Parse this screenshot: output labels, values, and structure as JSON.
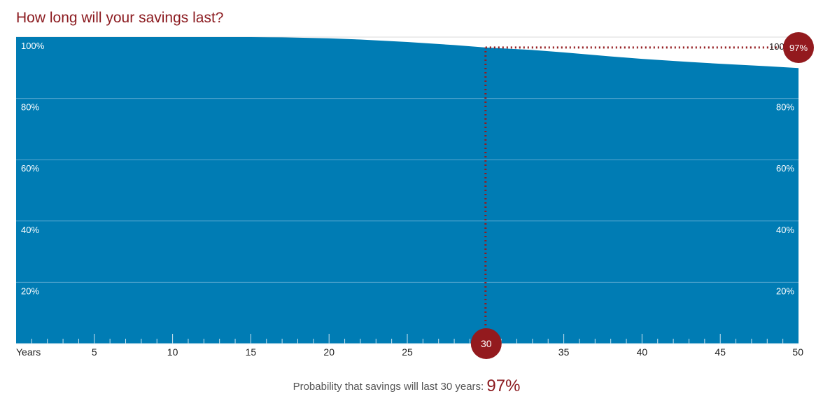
{
  "title": "How long will your savings last?",
  "footer": {
    "text": "Probability that savings will last 30 years:",
    "value": "97%"
  },
  "colors": {
    "area": "#007cb4",
    "accent": "#931a1e",
    "title": "#8b1a1f"
  },
  "chart_data": {
    "type": "area",
    "title": "How long will your savings last?",
    "xlabel": "Years",
    "ylabel": "",
    "x_ticks": [
      5,
      10,
      15,
      20,
      25,
      30,
      35,
      40,
      45,
      50
    ],
    "y_ticks": [
      "20%",
      "40%",
      "60%",
      "80%",
      "100%"
    ],
    "xlim": [
      0,
      50
    ],
    "ylim": [
      0,
      100
    ],
    "grid": true,
    "series": [
      {
        "x": [
          0,
          5,
          10,
          15,
          17,
          20,
          22,
          25,
          28,
          30,
          33,
          35,
          38,
          40,
          43,
          45,
          48,
          50
        ],
        "values": [
          100,
          100,
          100,
          100,
          99.9,
          99.6,
          99.2,
          98.4,
          97.4,
          96.6,
          95.8,
          95.0,
          93.7,
          92.9,
          91.9,
          91.3,
          90.5,
          89.9
        ]
      }
    ],
    "highlight": {
      "x_label": "30",
      "y_label": "97%",
      "right_axis_partial": "100"
    }
  }
}
